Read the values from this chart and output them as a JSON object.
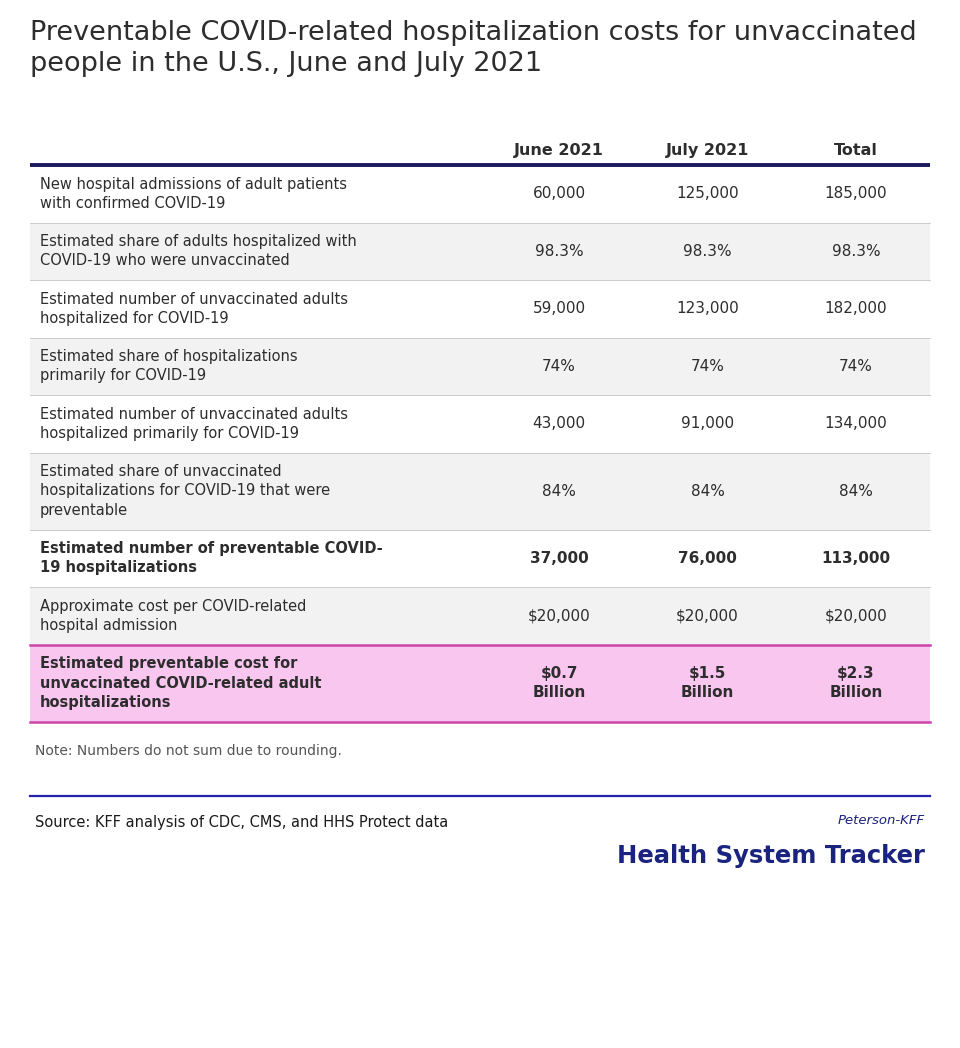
{
  "title_line1": "Preventable COVID-related hospitalization costs for unvaccinated",
  "title_line2": "people in the U.S., June and July 2021",
  "title_fontsize": 19.5,
  "col_headers": [
    "June 2021",
    "July 2021",
    "Total"
  ],
  "rows": [
    {
      "label": "New hospital admissions of adult patients\nwith confirmed COVID-19",
      "values": [
        "60,000",
        "125,000",
        "185,000"
      ],
      "bold": false,
      "highlight": false,
      "n_lines": 2
    },
    {
      "label": "Estimated share of adults hospitalized with\nCOVID-19 who were unvaccinated",
      "values": [
        "98.3%",
        "98.3%",
        "98.3%"
      ],
      "bold": false,
      "highlight": false,
      "n_lines": 2
    },
    {
      "label": "Estimated number of unvaccinated adults\nhospitalized for COVID-19",
      "values": [
        "59,000",
        "123,000",
        "182,000"
      ],
      "bold": false,
      "highlight": false,
      "n_lines": 2
    },
    {
      "label": "Estimated share of hospitalizations\nprimarily for COVID-19",
      "values": [
        "74%",
        "74%",
        "74%"
      ],
      "bold": false,
      "highlight": false,
      "n_lines": 2
    },
    {
      "label": "Estimated number of unvaccinated adults\nhospitalized primarily for COVID-19",
      "values": [
        "43,000",
        "91,000",
        "134,000"
      ],
      "bold": false,
      "highlight": false,
      "n_lines": 2
    },
    {
      "label": "Estimated share of unvaccinated\nhospitalizations for COVID-19 that were\npreventable",
      "values": [
        "84%",
        "84%",
        "84%"
      ],
      "bold": false,
      "highlight": false,
      "n_lines": 3
    },
    {
      "label": "Estimated number of preventable COVID-\n19 hospitalizations",
      "values": [
        "37,000",
        "76,000",
        "113,000"
      ],
      "bold": true,
      "highlight": false,
      "n_lines": 2
    },
    {
      "label": "Approximate cost per COVID-related\nhospital admission",
      "values": [
        "$20,000",
        "$20,000",
        "$20,000"
      ],
      "bold": false,
      "highlight": false,
      "n_lines": 2
    },
    {
      "label": "Estimated preventable cost for\nunvaccinated COVID-related adult\nhospitalizations",
      "values": [
        "$0.7\nBillion",
        "$1.5\nBillion",
        "$2.3\nBillion"
      ],
      "bold": true,
      "highlight": true,
      "n_lines": 3
    }
  ],
  "note": "Note: Numbers do not sum due to rounding.",
  "source": "Source: KFF analysis of CDC, CMS, and HHS Protect data",
  "brand_line1": "Peterson-KFF",
  "brand_line2": "Health System Tracker",
  "bg_color": "#ffffff",
  "header_line_color": "#1a1a5e",
  "highlight_bg": "#f9c6f0",
  "highlight_border": "#cc44aa",
  "alt_row_bg": "#f2f2f2",
  "white_row_bg": "#ffffff",
  "text_color": "#2d2d2d",
  "brand_color": "#1a237e",
  "brand_color2": "#283593",
  "note_color": "#555555",
  "source_color": "#1a1a1a",
  "sep_line_color": "#2222aa"
}
